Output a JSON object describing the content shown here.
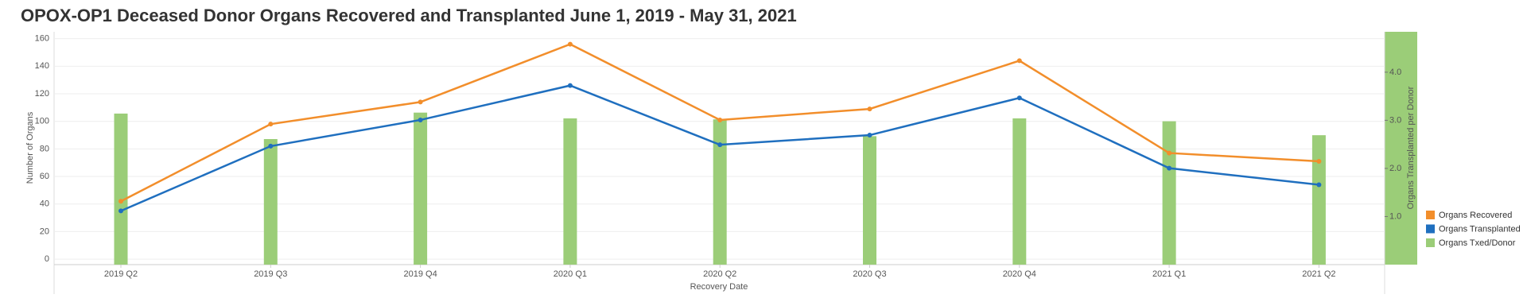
{
  "chart_data": {
    "type": "combo",
    "title": "OPOX-OP1 Deceased Donor Organs Recovered and Transplanted June 1, 2019 - May 31, 2021",
    "x_label": "Recovery Date",
    "y_label": "Number of Organs",
    "y2_label": "Organs Transplanted per Donor",
    "categories": [
      "2019 Q2",
      "2019 Q3",
      "2019 Q4",
      "2020 Q1",
      "2020 Q2",
      "2020 Q3",
      "2020 Q4",
      "2021 Q1",
      "2021 Q2"
    ],
    "series": [
      {
        "name": "Organs Recovered",
        "color": "#f28e2b",
        "kind": "line",
        "values": [
          42,
          98,
          114,
          156,
          101,
          109,
          144,
          77,
          71
        ]
      },
      {
        "name": "Organs Transplanted",
        "color": "#1f6fbf",
        "kind": "line",
        "values": [
          35,
          82,
          101,
          126,
          83,
          90,
          117,
          66,
          54
        ]
      },
      {
        "name": "Organs Txed/Donor",
        "color": "#9bcd78",
        "kind": "bar",
        "axis": "y2",
        "values": [
          3.14,
          2.61,
          3.16,
          3.04,
          3.02,
          2.67,
          3.04,
          2.98,
          2.69
        ]
      }
    ],
    "ylim": [
      -4,
      165
    ],
    "yticks": [
      0,
      20,
      40,
      60,
      80,
      100,
      120,
      140,
      160
    ],
    "y2lim": [
      0,
      4.84
    ],
    "y2ticks": [
      {
        "value": 1,
        "label": "1.0"
      },
      {
        "value": 2,
        "label": "2.0"
      },
      {
        "value": 3,
        "label": "3.0"
      },
      {
        "value": 4,
        "label": "4.0"
      }
    ],
    "grid": true,
    "legend": "right"
  }
}
